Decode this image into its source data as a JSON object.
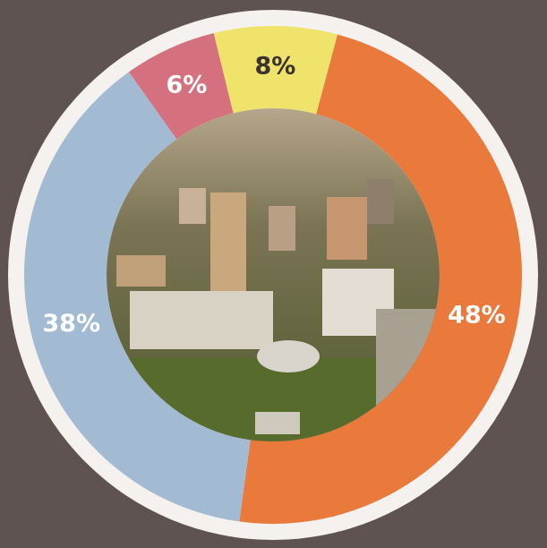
{
  "chart_data": {
    "type": "donut",
    "values": [
      48,
      38,
      6,
      8
    ],
    "value_labels": [
      "48%",
      "38%",
      "6%",
      "8%"
    ],
    "colors": [
      "#ea7a3b",
      "#a3bbd2",
      "#d5717f",
      "#efe36c"
    ],
    "label_colors": [
      "#ffffff",
      "#ffffff",
      "#ffffff",
      "#3a3330"
    ]
  }
}
